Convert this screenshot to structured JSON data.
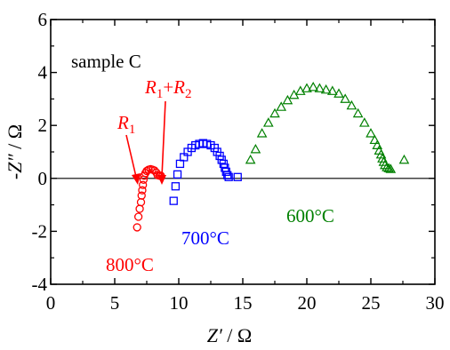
{
  "chart_data": {
    "type": "scatter",
    "xlabel_italic": "Z′",
    "xlabel_rest": " / Ω",
    "ylabel_italic": "-Z″",
    "ylabel_rest": " / Ω",
    "xlim": [
      0,
      30
    ],
    "ylim": [
      -4,
      6
    ],
    "xticks": [
      0,
      5,
      10,
      15,
      20,
      25,
      30
    ],
    "yticks": [
      -4,
      -2,
      0,
      2,
      4,
      6
    ],
    "reference_line_y": 0,
    "annotations": {
      "sample": "sample C",
      "r1_letter": "R",
      "r1_sub": "1",
      "r1r2_letter_a": "R",
      "r1r2_sub_a": "1",
      "r1r2_plus": "+",
      "r1r2_letter_b": "R",
      "r1r2_sub_b": "2"
    },
    "series": [
      {
        "name": "800°C",
        "marker": "circle",
        "color": "#ff0000",
        "points": [
          [
            6.75,
            -1.85
          ],
          [
            6.85,
            -1.45
          ],
          [
            6.95,
            -1.15
          ],
          [
            7.05,
            -0.9
          ],
          [
            7.1,
            -0.65
          ],
          [
            7.15,
            -0.45
          ],
          [
            7.2,
            -0.25
          ],
          [
            7.25,
            -0.05
          ],
          [
            7.3,
            0.1
          ],
          [
            7.4,
            0.2
          ],
          [
            7.5,
            0.28
          ],
          [
            7.65,
            0.33
          ],
          [
            7.8,
            0.35
          ],
          [
            7.95,
            0.33
          ],
          [
            8.1,
            0.3
          ],
          [
            8.25,
            0.22
          ],
          [
            8.35,
            0.12
          ],
          [
            8.5,
            0.1
          ],
          [
            8.6,
            0.1
          ]
        ]
      },
      {
        "name": "700°C",
        "marker": "square",
        "color": "#0000ff",
        "points": [
          [
            9.6,
            -0.85
          ],
          [
            9.75,
            -0.3
          ],
          [
            9.9,
            0.15
          ],
          [
            10.1,
            0.55
          ],
          [
            10.4,
            0.8
          ],
          [
            10.7,
            1.0
          ],
          [
            11.0,
            1.15
          ],
          [
            11.3,
            1.25
          ],
          [
            11.6,
            1.3
          ],
          [
            11.9,
            1.33
          ],
          [
            12.2,
            1.3
          ],
          [
            12.5,
            1.25
          ],
          [
            12.8,
            1.15
          ],
          [
            13.0,
            1.0
          ],
          [
            13.2,
            0.85
          ],
          [
            13.35,
            0.7
          ],
          [
            13.5,
            0.55
          ],
          [
            13.6,
            0.4
          ],
          [
            13.7,
            0.25
          ],
          [
            13.8,
            0.12
          ],
          [
            13.9,
            0.05
          ],
          [
            14.6,
            0.05
          ]
        ]
      },
      {
        "name": "600°C",
        "marker": "triangle",
        "color": "#008000",
        "points": [
          [
            15.6,
            0.7
          ],
          [
            16.0,
            1.1
          ],
          [
            16.5,
            1.7
          ],
          [
            17.0,
            2.1
          ],
          [
            17.5,
            2.45
          ],
          [
            18.0,
            2.7
          ],
          [
            18.5,
            2.95
          ],
          [
            19.0,
            3.15
          ],
          [
            19.5,
            3.3
          ],
          [
            20.0,
            3.4
          ],
          [
            20.5,
            3.45
          ],
          [
            21.0,
            3.4
          ],
          [
            21.5,
            3.35
          ],
          [
            22.0,
            3.3
          ],
          [
            22.5,
            3.2
          ],
          [
            23.0,
            3.0
          ],
          [
            23.5,
            2.75
          ],
          [
            24.0,
            2.45
          ],
          [
            24.5,
            2.1
          ],
          [
            25.0,
            1.7
          ],
          [
            25.3,
            1.45
          ],
          [
            25.5,
            1.25
          ],
          [
            25.65,
            1.05
          ],
          [
            25.8,
            0.9
          ],
          [
            25.9,
            0.75
          ],
          [
            26.0,
            0.62
          ],
          [
            26.1,
            0.5
          ],
          [
            26.25,
            0.42
          ],
          [
            26.4,
            0.38
          ],
          [
            26.55,
            0.35
          ],
          [
            27.6,
            0.7
          ]
        ]
      }
    ]
  }
}
